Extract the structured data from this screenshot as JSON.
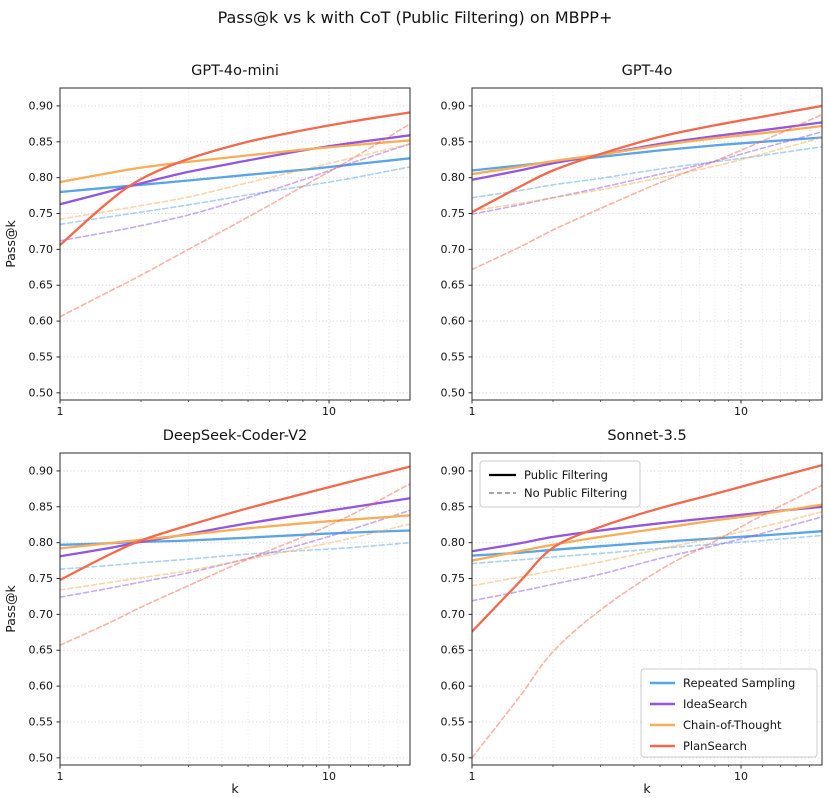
{
  "page": {
    "title": "Pass@k vs k with CoT (Public Filtering) on MBPP+"
  },
  "axes_text": {
    "ylabel": "Pass@k",
    "xlabel": "k"
  },
  "palette": {
    "repeated_sampling": "#58a5e8",
    "ideasearch": "#9355e2",
    "chain_of_thought": "#f9ad55",
    "plansearch": "#f4694b",
    "grid_major": "#cfcfcf",
    "grid_minor": "#e2e2e2",
    "spine": "#2b2b2b",
    "legend_border": "#cccccc",
    "legend_solid_sample": "#000000",
    "legend_dashed_sample": "#8a8a8a"
  },
  "filtering_legend": {
    "solid_label": "Public Filtering",
    "dashed_label": "No Public Filtering"
  },
  "methods_legend": [
    {
      "label": "Repeated Sampling",
      "color": "#58a5e8"
    },
    {
      "label": "IdeaSearch",
      "color": "#9355e2"
    },
    {
      "label": "Chain-of-Thought",
      "color": "#f9ad55"
    },
    {
      "label": "PlanSearch",
      "color": "#f4694b"
    }
  ],
  "chart_data": [
    {
      "type": "line",
      "title": "GPT-4o-mini",
      "xscale": "log",
      "xlim": [
        1,
        20
      ],
      "ylim": [
        0.49,
        0.925
      ],
      "yticks": [
        0.5,
        0.55,
        0.6,
        0.65,
        0.7,
        0.75,
        0.8,
        0.85,
        0.9
      ],
      "xticks": [
        1,
        10
      ],
      "minor_xticks": [
        2,
        3,
        4,
        5,
        6,
        7,
        8,
        9,
        12,
        14,
        16,
        18
      ],
      "k": [
        1,
        1.5,
        2,
        3,
        5,
        8,
        12,
        20
      ],
      "series": [
        {
          "name": "Repeated Sampling",
          "filtering": "Public Filtering",
          "dash": false,
          "color": "#58a5e8",
          "values": [
            0.78,
            0.786,
            0.79,
            0.796,
            0.804,
            0.811,
            0.818,
            0.827
          ]
        },
        {
          "name": "Repeated Sampling",
          "filtering": "No Public Filtering",
          "dash": true,
          "color": "#58a5e8",
          "values": [
            0.735,
            0.745,
            0.752,
            0.762,
            0.776,
            0.788,
            0.799,
            0.815
          ]
        },
        {
          "name": "IdeaSearch",
          "filtering": "Public Filtering",
          "dash": false,
          "color": "#9355e2",
          "values": [
            0.763,
            0.78,
            0.792,
            0.808,
            0.824,
            0.838,
            0.848,
            0.859
          ]
        },
        {
          "name": "IdeaSearch",
          "filtering": "No Public Filtering",
          "dash": true,
          "color": "#9355e2",
          "values": [
            0.712,
            0.724,
            0.733,
            0.748,
            0.772,
            0.797,
            0.82,
            0.847
          ]
        },
        {
          "name": "Chain-of-Thought",
          "filtering": "Public Filtering",
          "dash": false,
          "color": "#f9ad55",
          "values": [
            0.794,
            0.806,
            0.814,
            0.822,
            0.831,
            0.839,
            0.845,
            0.852
          ]
        },
        {
          "name": "Chain-of-Thought",
          "filtering": "No Public Filtering",
          "dash": true,
          "color": "#f9ad55",
          "values": [
            0.742,
            0.753,
            0.761,
            0.773,
            0.793,
            0.811,
            0.827,
            0.847
          ]
        },
        {
          "name": "PlanSearch",
          "filtering": "Public Filtering",
          "dash": false,
          "color": "#f4694b",
          "values": [
            0.706,
            0.765,
            0.798,
            0.826,
            0.85,
            0.866,
            0.878,
            0.891
          ]
        },
        {
          "name": "PlanSearch",
          "filtering": "No Public Filtering",
          "dash": true,
          "color": "#f4694b",
          "values": [
            0.606,
            0.64,
            0.664,
            0.7,
            0.745,
            0.788,
            0.825,
            0.875
          ]
        }
      ]
    },
    {
      "type": "line",
      "title": "GPT-4o",
      "xscale": "log",
      "xlim": [
        1,
        20
      ],
      "ylim": [
        0.49,
        0.925
      ],
      "yticks": [
        0.5,
        0.55,
        0.6,
        0.65,
        0.7,
        0.75,
        0.8,
        0.85,
        0.9
      ],
      "xticks": [
        1,
        10
      ],
      "minor_xticks": [
        2,
        3,
        4,
        5,
        6,
        7,
        8,
        9,
        12,
        14,
        16,
        18
      ],
      "k": [
        1,
        1.5,
        2,
        3,
        5,
        8,
        12,
        20
      ],
      "series": [
        {
          "name": "Repeated Sampling",
          "filtering": "Public Filtering",
          "dash": false,
          "color": "#58a5e8",
          "values": [
            0.81,
            0.817,
            0.822,
            0.829,
            0.838,
            0.845,
            0.85,
            0.856
          ]
        },
        {
          "name": "Repeated Sampling",
          "filtering": "No Public Filtering",
          "dash": true,
          "color": "#58a5e8",
          "values": [
            0.772,
            0.782,
            0.79,
            0.799,
            0.812,
            0.822,
            0.831,
            0.843
          ]
        },
        {
          "name": "IdeaSearch",
          "filtering": "Public Filtering",
          "dash": false,
          "color": "#9355e2",
          "values": [
            0.797,
            0.81,
            0.82,
            0.832,
            0.847,
            0.858,
            0.866,
            0.877
          ]
        },
        {
          "name": "IdeaSearch",
          "filtering": "No Public Filtering",
          "dash": true,
          "color": "#9355e2",
          "values": [
            0.749,
            0.762,
            0.772,
            0.786,
            0.805,
            0.823,
            0.841,
            0.864
          ]
        },
        {
          "name": "Chain-of-Thought",
          "filtering": "Public Filtering",
          "dash": false,
          "color": "#f9ad55",
          "values": [
            0.805,
            0.815,
            0.823,
            0.832,
            0.845,
            0.855,
            0.862,
            0.872
          ]
        },
        {
          "name": "Chain-of-Thought",
          "filtering": "No Public Filtering",
          "dash": true,
          "color": "#f9ad55",
          "values": [
            0.754,
            0.764,
            0.772,
            0.783,
            0.8,
            0.816,
            0.833,
            0.856
          ]
        },
        {
          "name": "PlanSearch",
          "filtering": "Public Filtering",
          "dash": false,
          "color": "#f4694b",
          "values": [
            0.752,
            0.787,
            0.81,
            0.833,
            0.857,
            0.873,
            0.885,
            0.9
          ]
        },
        {
          "name": "PlanSearch",
          "filtering": "No Public Filtering",
          "dash": true,
          "color": "#f4694b",
          "values": [
            0.672,
            0.703,
            0.727,
            0.757,
            0.793,
            0.823,
            0.851,
            0.888
          ]
        }
      ]
    },
    {
      "type": "line",
      "title": "DeepSeek-Coder-V2",
      "xscale": "log",
      "xlim": [
        1,
        20
      ],
      "ylim": [
        0.49,
        0.925
      ],
      "yticks": [
        0.5,
        0.55,
        0.6,
        0.65,
        0.7,
        0.75,
        0.8,
        0.85,
        0.9
      ],
      "xticks": [
        1,
        10
      ],
      "minor_xticks": [
        2,
        3,
        4,
        5,
        6,
        7,
        8,
        9,
        12,
        14,
        16,
        18
      ],
      "k": [
        1,
        1.5,
        2,
        3,
        5,
        8,
        12,
        20
      ],
      "series": [
        {
          "name": "Repeated Sampling",
          "filtering": "Public Filtering",
          "dash": false,
          "color": "#58a5e8",
          "values": [
            0.797,
            0.799,
            0.801,
            0.803,
            0.807,
            0.811,
            0.814,
            0.817
          ]
        },
        {
          "name": "Repeated Sampling",
          "filtering": "No Public Filtering",
          "dash": true,
          "color": "#58a5e8",
          "values": [
            0.763,
            0.768,
            0.772,
            0.777,
            0.784,
            0.789,
            0.793,
            0.8
          ]
        },
        {
          "name": "IdeaSearch",
          "filtering": "Public Filtering",
          "dash": false,
          "color": "#9355e2",
          "values": [
            0.781,
            0.792,
            0.801,
            0.812,
            0.827,
            0.839,
            0.849,
            0.862
          ]
        },
        {
          "name": "IdeaSearch",
          "filtering": "No Public Filtering",
          "dash": true,
          "color": "#9355e2",
          "values": [
            0.724,
            0.736,
            0.745,
            0.758,
            0.778,
            0.798,
            0.818,
            0.845
          ]
        },
        {
          "name": "Chain-of-Thought",
          "filtering": "Public Filtering",
          "dash": false,
          "color": "#f9ad55",
          "values": [
            0.792,
            0.799,
            0.804,
            0.811,
            0.82,
            0.827,
            0.832,
            0.838
          ]
        },
        {
          "name": "Chain-of-Thought",
          "filtering": "No Public Filtering",
          "dash": true,
          "color": "#f9ad55",
          "values": [
            0.734,
            0.744,
            0.751,
            0.761,
            0.777,
            0.792,
            0.806,
            0.826
          ]
        },
        {
          "name": "PlanSearch",
          "filtering": "Public Filtering",
          "dash": false,
          "color": "#f4694b",
          "values": [
            0.748,
            0.782,
            0.803,
            0.824,
            0.848,
            0.868,
            0.885,
            0.906
          ]
        },
        {
          "name": "PlanSearch",
          "filtering": "No Public Filtering",
          "dash": true,
          "color": "#f4694b",
          "values": [
            0.657,
            0.687,
            0.71,
            0.74,
            0.777,
            0.808,
            0.838,
            0.882
          ]
        }
      ]
    },
    {
      "type": "line",
      "title": "Sonnet-3.5",
      "xscale": "log",
      "xlim": [
        1,
        20
      ],
      "ylim": [
        0.49,
        0.925
      ],
      "yticks": [
        0.5,
        0.55,
        0.6,
        0.65,
        0.7,
        0.75,
        0.8,
        0.85,
        0.9
      ],
      "xticks": [
        1,
        10
      ],
      "minor_xticks": [
        2,
        3,
        4,
        5,
        6,
        7,
        8,
        9,
        12,
        14,
        16,
        18
      ],
      "k": [
        1,
        1.5,
        2,
        3,
        5,
        8,
        12,
        20
      ],
      "series": [
        {
          "name": "Repeated Sampling",
          "filtering": "Public Filtering",
          "dash": false,
          "color": "#58a5e8",
          "values": [
            0.782,
            0.786,
            0.79,
            0.795,
            0.801,
            0.806,
            0.81,
            0.816
          ]
        },
        {
          "name": "Repeated Sampling",
          "filtering": "No Public Filtering",
          "dash": true,
          "color": "#58a5e8",
          "values": [
            0.771,
            0.776,
            0.78,
            0.785,
            0.792,
            0.798,
            0.803,
            0.81
          ]
        },
        {
          "name": "IdeaSearch",
          "filtering": "Public Filtering",
          "dash": false,
          "color": "#9355e2",
          "values": [
            0.788,
            0.799,
            0.808,
            0.817,
            0.827,
            0.835,
            0.842,
            0.85
          ]
        },
        {
          "name": "IdeaSearch",
          "filtering": "No Public Filtering",
          "dash": true,
          "color": "#9355e2",
          "values": [
            0.719,
            0.732,
            0.742,
            0.756,
            0.778,
            0.796,
            0.813,
            0.836
          ]
        },
        {
          "name": "Chain-of-Thought",
          "filtering": "Public Filtering",
          "dash": false,
          "color": "#f9ad55",
          "values": [
            0.775,
            0.788,
            0.797,
            0.808,
            0.82,
            0.831,
            0.84,
            0.853
          ]
        },
        {
          "name": "Chain-of-Thought",
          "filtering": "No Public Filtering",
          "dash": true,
          "color": "#f9ad55",
          "values": [
            0.74,
            0.752,
            0.761,
            0.773,
            0.791,
            0.807,
            0.822,
            0.843
          ]
        },
        {
          "name": "PlanSearch",
          "filtering": "Public Filtering",
          "dash": false,
          "color": "#f4694b",
          "values": [
            0.676,
            0.745,
            0.793,
            0.822,
            0.848,
            0.868,
            0.886,
            0.908
          ]
        },
        {
          "name": "PlanSearch",
          "filtering": "No Public Filtering",
          "dash": true,
          "color": "#f4694b",
          "values": [
            0.5,
            0.585,
            0.648,
            0.706,
            0.762,
            0.802,
            0.838,
            0.88
          ]
        }
      ]
    }
  ]
}
